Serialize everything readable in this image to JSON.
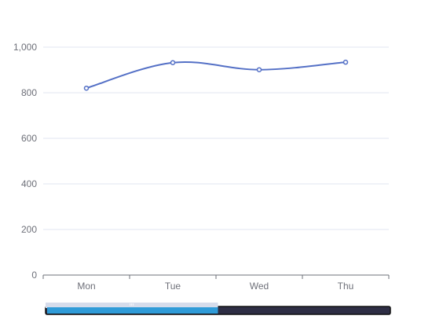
{
  "chart_data": {
    "type": "line",
    "title": "",
    "xlabel": "",
    "ylabel": "",
    "categories": [
      "Mon",
      "Tue",
      "Wed",
      "Thu"
    ],
    "series": [
      {
        "values": [
          820,
          932,
          901,
          934
        ]
      }
    ],
    "ylim": [
      0,
      1000
    ],
    "yticks": [
      0,
      200,
      400,
      600,
      800,
      1000
    ],
    "ytick_labels": [
      "0",
      "200",
      "400",
      "600",
      "800",
      "1,000"
    ],
    "smooth": true,
    "grid": true,
    "legend": "none",
    "datazoom": {
      "start_percent": 0,
      "end_percent": 50
    }
  },
  "colors": {
    "line": "#5470c6",
    "grid": "#e0e6f1",
    "axis": "#6e7079",
    "axis_label": "#6e7079",
    "zoom_track": "#2e2e45",
    "zoom_fill": "#2f9bd8",
    "zoom_selection": "#d6dceb",
    "point_fill": "#ffffff"
  },
  "icons": {
    "zoom_handle": "grip-icon"
  }
}
